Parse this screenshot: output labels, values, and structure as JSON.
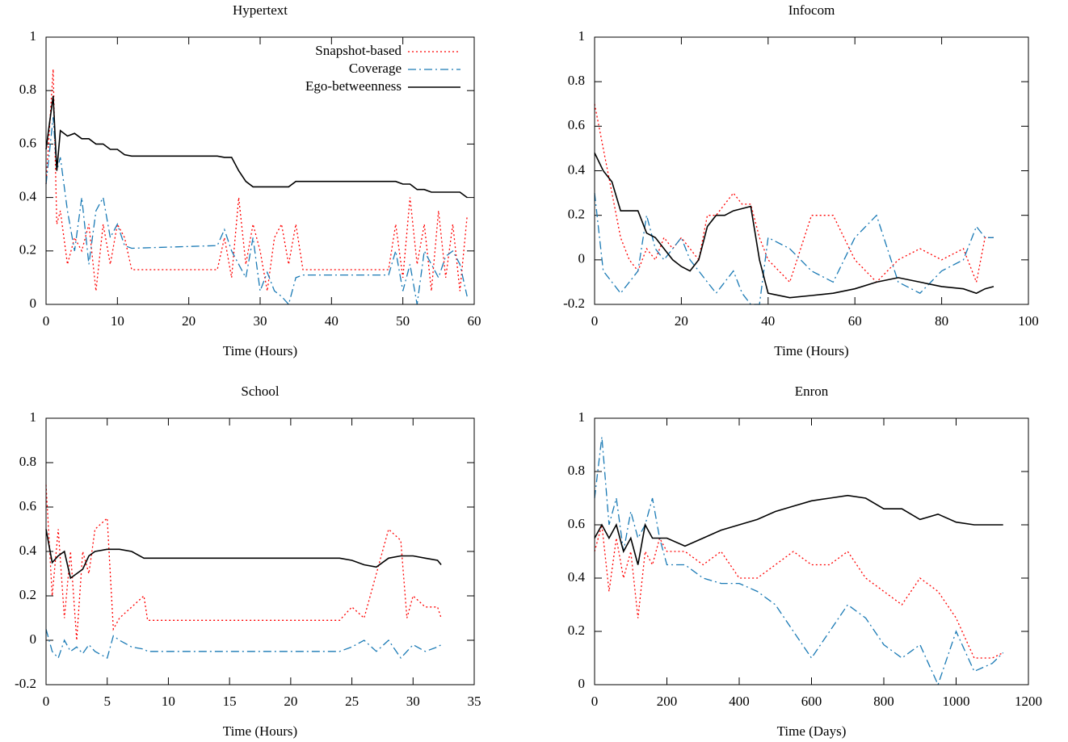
{
  "chart_data": [
    {
      "type": "line",
      "title": "Hypertext",
      "xlabel": "Time (Hours)",
      "xlim": [
        0,
        60
      ],
      "ylim": [
        0,
        1
      ],
      "xticks": [
        0,
        10,
        20,
        30,
        40,
        50,
        60
      ],
      "yticks": [
        0,
        0.2,
        0.4,
        0.6,
        0.8,
        1
      ],
      "legend": "upper-right",
      "x": [
        0,
        1,
        1.5,
        2,
        3,
        4,
        5,
        6,
        7,
        8,
        9,
        10,
        11,
        12,
        24,
        25,
        26,
        27,
        28,
        29,
        30,
        31,
        32,
        33,
        34,
        35,
        36,
        48,
        49,
        50,
        51,
        52,
        53,
        54,
        55,
        56,
        57,
        58,
        59
      ],
      "series": [
        {
          "name": "Snapshot-based",
          "color": "#ff0000",
          "dash": "dotted",
          "values": [
            0.45,
            0.88,
            0.3,
            0.35,
            0.15,
            0.25,
            0.2,
            0.3,
            0.05,
            0.3,
            0.15,
            0.3,
            0.25,
            0.13,
            0.13,
            0.25,
            0.1,
            0.4,
            0.15,
            0.3,
            0.2,
            0.05,
            0.25,
            0.3,
            0.15,
            0.3,
            0.13,
            0.13,
            0.3,
            0.1,
            0.4,
            0.15,
            0.3,
            0.05,
            0.35,
            0.1,
            0.3,
            0.05,
            0.33
          ]
        },
        {
          "name": "Coverage",
          "color": "#1a7ab5",
          "dash": "dashdot",
          "values": [
            0.45,
            0.7,
            0.5,
            0.55,
            0.35,
            0.2,
            0.4,
            0.15,
            0.35,
            0.4,
            0.25,
            0.3,
            0.22,
            0.21,
            0.22,
            0.28,
            0.2,
            0.15,
            0.1,
            0.25,
            0.05,
            0.12,
            0.05,
            0.03,
            0,
            0.1,
            0.11,
            0.11,
            0.2,
            0.05,
            0.15,
            0,
            0.2,
            0.15,
            0.1,
            0.18,
            0.2,
            0.15,
            0.03
          ]
        },
        {
          "name": "Ego-betweenness",
          "color": "#000000",
          "dash": "solid",
          "values": [
            0.58,
            0.78,
            0.5,
            0.65,
            0.63,
            0.64,
            0.62,
            0.62,
            0.6,
            0.6,
            0.58,
            0.58,
            0.56,
            0.555,
            0.555,
            0.55,
            0.55,
            0.5,
            0.46,
            0.44,
            0.44,
            0.44,
            0.44,
            0.44,
            0.44,
            0.46,
            0.46,
            0.46,
            0.46,
            0.45,
            0.45,
            0.43,
            0.43,
            0.42,
            0.42,
            0.42,
            0.42,
            0.42,
            0.4
          ]
        }
      ]
    },
    {
      "type": "line",
      "title": "Infocom",
      "xlabel": "Time (Hours)",
      "xlim": [
        0,
        100
      ],
      "ylim": [
        -0.2,
        1
      ],
      "xticks": [
        0,
        20,
        40,
        60,
        80,
        100
      ],
      "yticks": [
        -0.2,
        0,
        0.2,
        0.4,
        0.6,
        0.8,
        1
      ],
      "x": [
        0,
        2,
        4,
        6,
        8,
        10,
        12,
        14,
        16,
        18,
        20,
        22,
        24,
        26,
        28,
        30,
        32,
        34,
        36,
        38,
        40,
        45,
        50,
        55,
        60,
        65,
        70,
        75,
        80,
        85,
        88,
        90,
        92
      ],
      "series": [
        {
          "color": "#ff0000",
          "dash": "dotted",
          "values": [
            0.7,
            0.5,
            0.3,
            0.1,
            0,
            -0.05,
            0.05,
            0,
            0.1,
            0.05,
            0.1,
            0.05,
            0,
            0.2,
            0.2,
            0.25,
            0.3,
            0.25,
            0.25,
            0.1,
            0,
            -0.1,
            0.2,
            0.2,
            0,
            -0.1,
            0,
            0.05,
            0,
            0.05,
            -0.1,
            0.1,
            0.1
          ]
        },
        {
          "color": "#1a7ab5",
          "dash": "dashdot",
          "values": [
            0.3,
            -0.05,
            -0.1,
            -0.15,
            -0.1,
            -0.05,
            0.2,
            0.05,
            0,
            0.05,
            0.1,
            0,
            -0.05,
            -0.1,
            -0.15,
            -0.1,
            -0.05,
            -0.15,
            -0.2,
            -0.2,
            0.1,
            0.05,
            -0.05,
            -0.1,
            0.1,
            0.2,
            -0.1,
            -0.15,
            -0.05,
            0,
            0.15,
            0.1,
            0.1
          ]
        },
        {
          "color": "#000000",
          "dash": "solid",
          "values": [
            0.48,
            0.4,
            0.35,
            0.22,
            0.22,
            0.22,
            0.12,
            0.1,
            0.05,
            0,
            -0.03,
            -0.05,
            0,
            0.15,
            0.2,
            0.2,
            0.22,
            0.23,
            0.24,
            0,
            -0.15,
            -0.17,
            -0.16,
            -0.15,
            -0.13,
            -0.1,
            -0.08,
            -0.1,
            -0.12,
            -0.13,
            -0.15,
            -0.13,
            -0.12
          ]
        }
      ]
    },
    {
      "type": "line",
      "title": "School",
      "xlabel": "Time (Hours)",
      "xlim": [
        0,
        35
      ],
      "ylim": [
        -0.2,
        1
      ],
      "xticks": [
        0,
        5,
        10,
        15,
        20,
        25,
        30,
        35
      ],
      "yticks": [
        -0.2,
        0,
        0.2,
        0.4,
        0.6,
        0.8,
        1
      ],
      "x": [
        0,
        0.5,
        1,
        1.5,
        2,
        2.5,
        3,
        3.5,
        4,
        5,
        5.5,
        6,
        7,
        8,
        8.3,
        24,
        25,
        26,
        27,
        28,
        29,
        29.5,
        30,
        31,
        32,
        32.3
      ],
      "series": [
        {
          "color": "#ff0000",
          "dash": "dotted",
          "values": [
            0.7,
            0.2,
            0.5,
            0.1,
            0.4,
            0,
            0.4,
            0.3,
            0.5,
            0.55,
            0.05,
            0.1,
            0.15,
            0.2,
            0.09,
            0.09,
            0.15,
            0.1,
            0.3,
            0.5,
            0.45,
            0.1,
            0.2,
            0.15,
            0.15,
            0.1
          ]
        },
        {
          "color": "#1a7ab5",
          "dash": "dashdot",
          "values": [
            0.05,
            -0.05,
            -0.08,
            0,
            -0.05,
            -0.03,
            -0.06,
            -0.02,
            -0.05,
            -0.08,
            0.02,
            0,
            -0.03,
            -0.04,
            -0.05,
            -0.05,
            -0.03,
            0,
            -0.05,
            0,
            -0.08,
            -0.05,
            -0.02,
            -0.05,
            -0.03,
            -0.02
          ]
        },
        {
          "color": "#000000",
          "dash": "solid",
          "values": [
            0.5,
            0.35,
            0.38,
            0.4,
            0.28,
            0.3,
            0.32,
            0.38,
            0.4,
            0.41,
            0.41,
            0.41,
            0.4,
            0.37,
            0.37,
            0.37,
            0.36,
            0.34,
            0.33,
            0.37,
            0.38,
            0.38,
            0.38,
            0.37,
            0.36,
            0.34
          ]
        }
      ]
    },
    {
      "type": "line",
      "title": "Enron",
      "xlabel": "Time (Days)",
      "xlim": [
        0,
        1200
      ],
      "ylim": [
        0,
        1
      ],
      "xticks": [
        0,
        200,
        400,
        600,
        800,
        1000,
        1200
      ],
      "yticks": [
        0,
        0.2,
        0.4,
        0.6,
        0.8,
        1
      ],
      "x": [
        0,
        20,
        40,
        60,
        80,
        100,
        120,
        140,
        160,
        180,
        200,
        250,
        300,
        350,
        400,
        450,
        500,
        550,
        600,
        650,
        700,
        750,
        800,
        850,
        900,
        950,
        1000,
        1050,
        1100,
        1130
      ],
      "series": [
        {
          "color": "#ff0000",
          "dash": "dotted",
          "values": [
            0.5,
            0.6,
            0.35,
            0.55,
            0.4,
            0.5,
            0.25,
            0.5,
            0.45,
            0.55,
            0.5,
            0.5,
            0.45,
            0.5,
            0.4,
            0.4,
            0.45,
            0.5,
            0.45,
            0.45,
            0.5,
            0.4,
            0.35,
            0.3,
            0.4,
            0.35,
            0.25,
            0.1,
            0.1,
            0.12
          ]
        },
        {
          "color": "#1a7ab5",
          "dash": "dashdot",
          "values": [
            0.7,
            0.93,
            0.6,
            0.7,
            0.5,
            0.65,
            0.55,
            0.6,
            0.7,
            0.55,
            0.45,
            0.45,
            0.4,
            0.38,
            0.38,
            0.35,
            0.3,
            0.2,
            0.1,
            0.2,
            0.3,
            0.25,
            0.15,
            0.1,
            0.15,
            0,
            0.2,
            0.05,
            0.08,
            0.12
          ]
        },
        {
          "color": "#000000",
          "dash": "solid",
          "values": [
            0.55,
            0.6,
            0.55,
            0.6,
            0.5,
            0.55,
            0.45,
            0.6,
            0.55,
            0.55,
            0.55,
            0.52,
            0.55,
            0.58,
            0.6,
            0.62,
            0.65,
            0.67,
            0.69,
            0.7,
            0.71,
            0.7,
            0.66,
            0.66,
            0.62,
            0.64,
            0.61,
            0.6,
            0.6,
            0.6
          ]
        }
      ]
    }
  ]
}
